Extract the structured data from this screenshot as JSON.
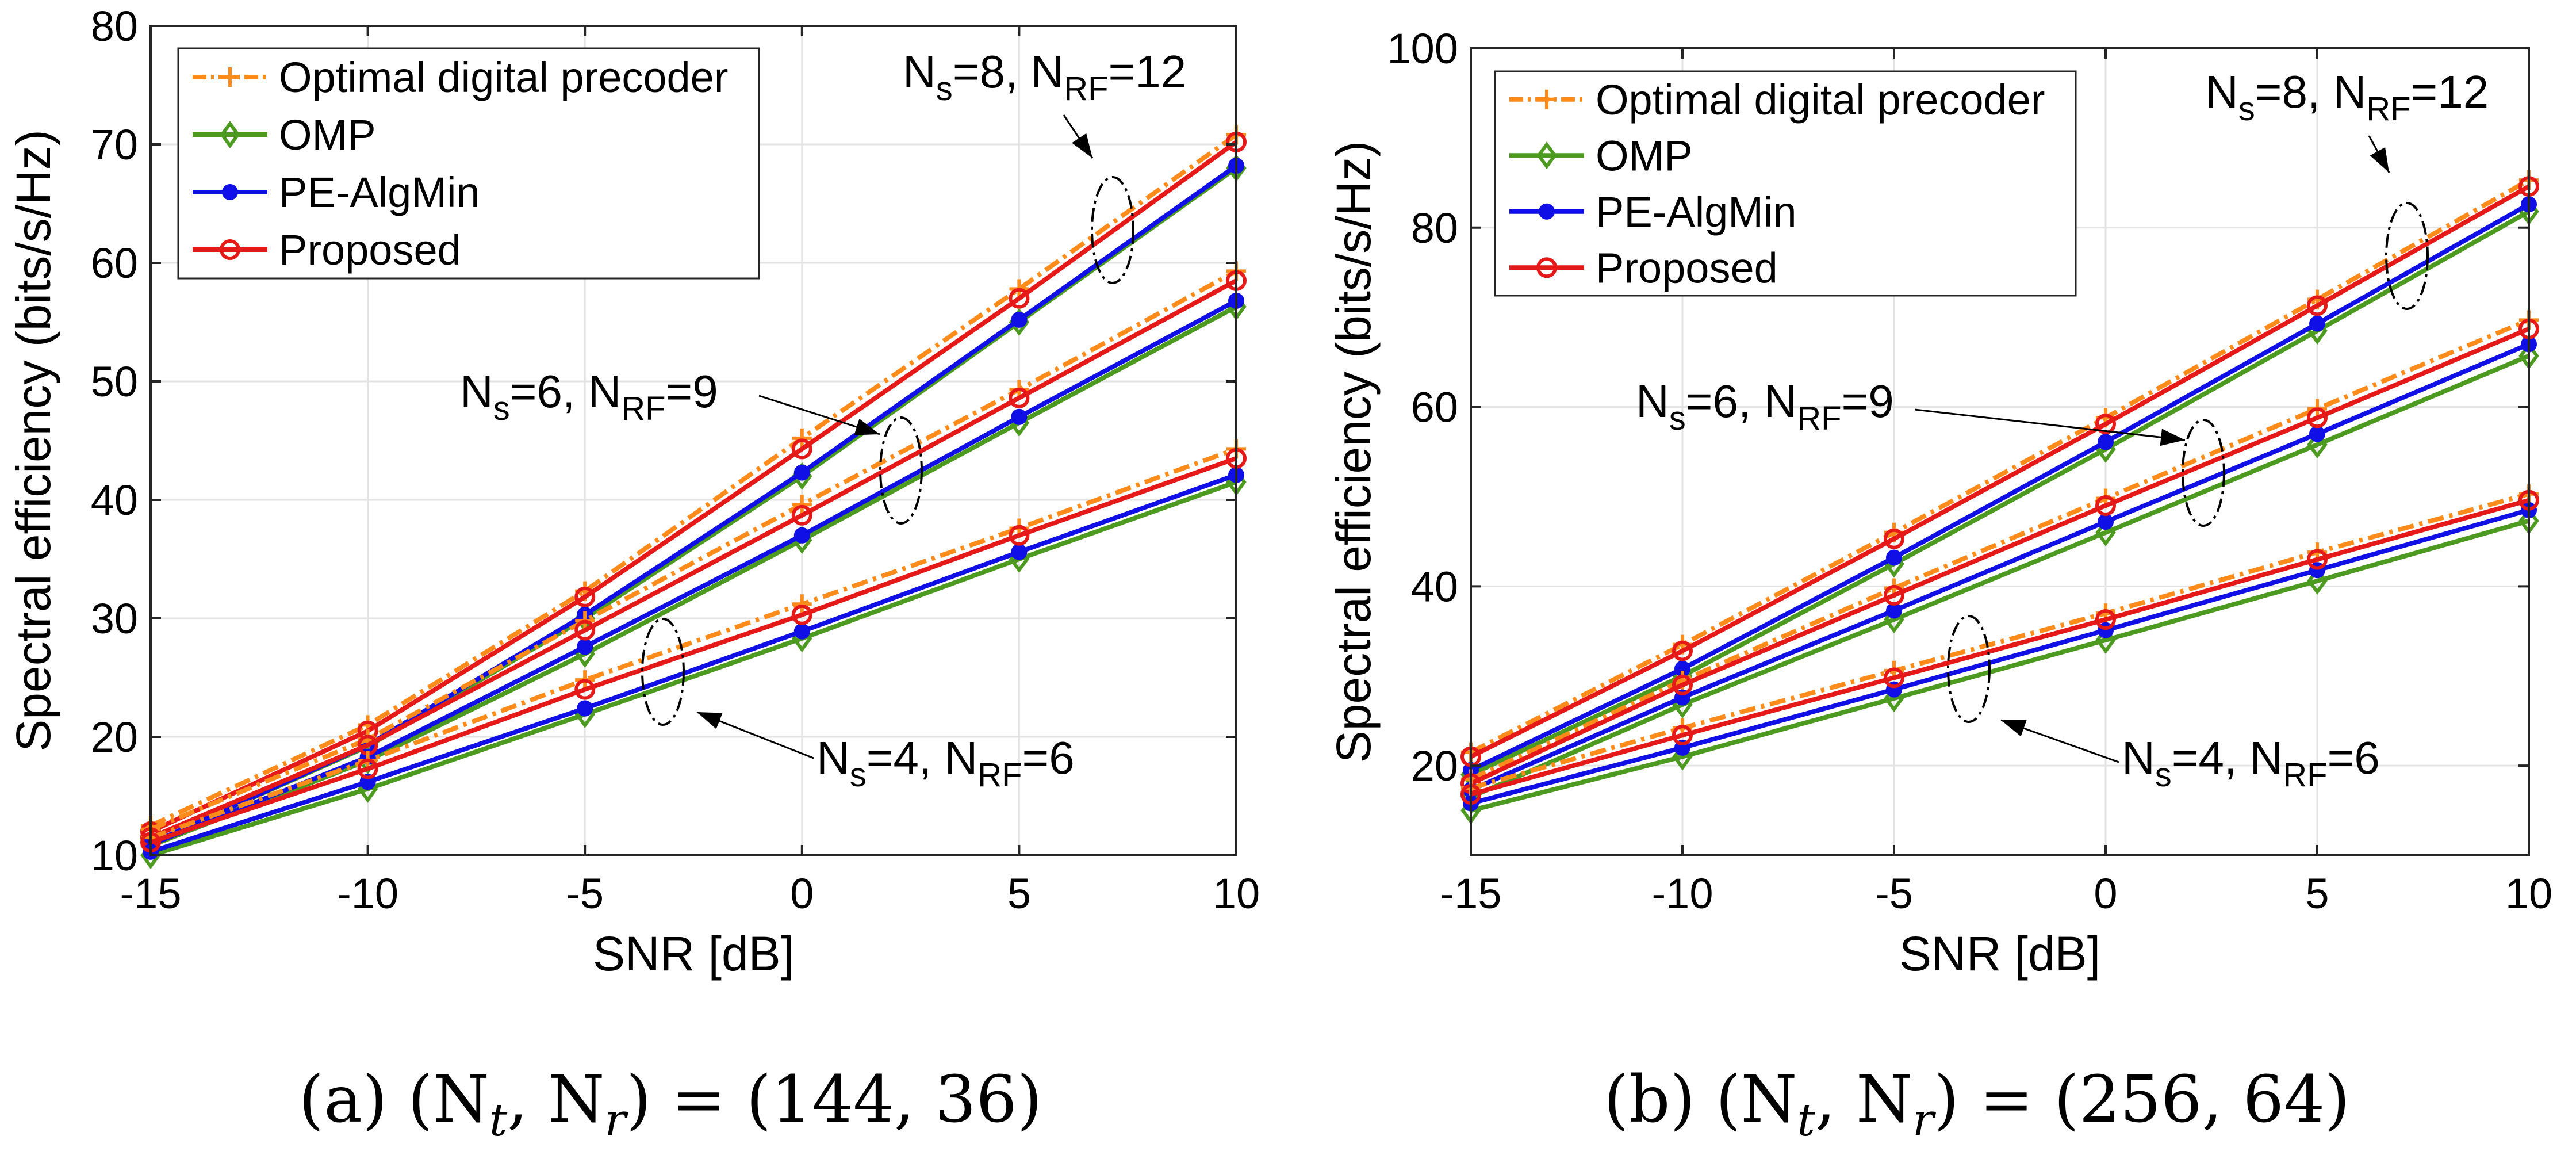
{
  "chart_data": [
    {
      "type": "line",
      "panel": "a",
      "caption": {
        "prefix": "(a)",
        "math": "(N",
        "t": "t",
        "r": "r",
        "values": "(144, 36)"
      },
      "xlabel": "SNR [dB]",
      "ylabel": "Spectral efficiency (bits/s/Hz)",
      "x": [
        -15,
        -10,
        -5,
        0,
        5,
        10
      ],
      "xlim": [
        -15,
        10
      ],
      "ylim": [
        10,
        80
      ],
      "xticks": [
        -15,
        -10,
        -5,
        0,
        5,
        10
      ],
      "yticks": [
        10,
        20,
        30,
        40,
        50,
        60,
        70,
        80
      ],
      "grid": true,
      "legend": {
        "position": "top-left",
        "entries": [
          "Optimal digital precoder",
          "OMP",
          "PE-AlgMin",
          "Proposed"
        ]
      },
      "groups": [
        {
          "label": {
            "ns": "8",
            "nrf": "12"
          },
          "series": {
            "Optimal digital precoder": [
              12.5,
              21.0,
              32.3,
              45.2,
              57.8,
              70.8
            ],
            "OMP": [
              11.0,
              19.2,
              30.0,
              42.0,
              55.0,
              68.0
            ],
            "PE-AlgMin": [
              11.0,
              19.3,
              30.3,
              42.3,
              55.2,
              68.2
            ],
            "Proposed": [
              12.0,
              20.5,
              31.8,
              44.3,
              57.0,
              70.2
            ]
          }
        },
        {
          "label": {
            "ns": "6",
            "nrf": "9"
          },
          "series": {
            "Optimal digital precoder": [
              12.2,
              19.8,
              29.8,
              39.6,
              49.3,
              59.3
            ],
            "OMP": [
              10.8,
              18.0,
              27.0,
              36.6,
              46.5,
              56.3
            ],
            "PE-AlgMin": [
              10.9,
              18.3,
              27.6,
              37.0,
              47.0,
              56.8
            ],
            "Proposed": [
              11.5,
              19.3,
              29.0,
              38.7,
              48.6,
              58.5
            ]
          }
        },
        {
          "label": {
            "ns": "4",
            "nrf": "6"
          },
          "series": {
            "Optimal digital precoder": [
              11.5,
              18.0,
              24.8,
              31.2,
              37.6,
              44.3
            ],
            "OMP": [
              10.0,
              15.6,
              21.9,
              28.3,
              35.0,
              41.5
            ],
            "PE-AlgMin": [
              10.3,
              16.2,
              22.4,
              28.9,
              35.6,
              42.1
            ],
            "Proposed": [
              11.1,
              17.3,
              24.0,
              30.3,
              37.0,
              43.5
            ]
          }
        }
      ]
    },
    {
      "type": "line",
      "panel": "b",
      "caption": {
        "prefix": "(b)",
        "math": "(N",
        "t": "t",
        "r": "r",
        "values": "(256, 64)"
      },
      "xlabel": "SNR [dB]",
      "ylabel": "Spectral efficiency (bits/s/Hz)",
      "x": [
        -15,
        -10,
        -5,
        0,
        5,
        10
      ],
      "xlim": [
        -15,
        10
      ],
      "ylim": [
        10,
        100
      ],
      "xticks": [
        -15,
        -10,
        -5,
        0,
        5,
        10
      ],
      "yticks": [
        20,
        40,
        60,
        80,
        100
      ],
      "grid": true,
      "legend": {
        "position": "top-left",
        "entries": [
          "Optimal digital precoder",
          "OMP",
          "PE-AlgMin",
          "Proposed"
        ]
      },
      "groups": [
        {
          "label": {
            "ns": "8",
            "nrf": "12"
          },
          "series": {
            "Optimal digital precoder": [
              21.5,
              33.5,
              46.0,
              58.8,
              72.0,
              85.3
            ],
            "OMP": [
              19.0,
              30.0,
              42.5,
              55.3,
              68.5,
              81.8
            ],
            "PE-AlgMin": [
              19.5,
              30.8,
              43.2,
              56.1,
              69.3,
              82.6
            ],
            "Proposed": [
              21.0,
              32.8,
              45.3,
              58.1,
              71.3,
              84.6
            ]
          }
        },
        {
          "label": {
            "ns": "6",
            "nrf": "9"
          },
          "series": {
            "Optimal digital precoder": [
              18.5,
              29.5,
              39.8,
              49.8,
              59.8,
              69.7
            ],
            "OMP": [
              16.5,
              26.8,
              36.3,
              46.0,
              55.8,
              65.7
            ],
            "PE-AlgMin": [
              17.3,
              27.6,
              37.3,
              47.2,
              57.0,
              67.0
            ],
            "Proposed": [
              18.0,
              29.0,
              39.0,
              49.0,
              58.8,
              68.7
            ]
          }
        },
        {
          "label": {
            "ns": "4",
            "nrf": "6"
          },
          "series": {
            "Optimal digital precoder": [
              17.5,
              24.2,
              30.6,
              37.0,
              43.8,
              50.3
            ],
            "OMP": [
              15.0,
              21.0,
              27.5,
              34.0,
              40.6,
              47.3
            ],
            "PE-AlgMin": [
              15.8,
              22.0,
              28.5,
              35.1,
              41.8,
              48.5
            ],
            "Proposed": [
              16.8,
              23.4,
              29.8,
              36.3,
              43.0,
              49.6
            ]
          }
        }
      ]
    }
  ],
  "styles": {
    "Optimal digital precoder": {
      "color": "#FF8C1A",
      "marker": "plus",
      "dash": "28 10 6 10"
    },
    "OMP": {
      "color": "#4C9A1F",
      "marker": "diamond",
      "dash": ""
    },
    "PE-AlgMin": {
      "color": "#1010E6",
      "marker": "dot",
      "dash": ""
    },
    "Proposed": {
      "color": "#E61919",
      "marker": "circle",
      "dash": ""
    }
  }
}
